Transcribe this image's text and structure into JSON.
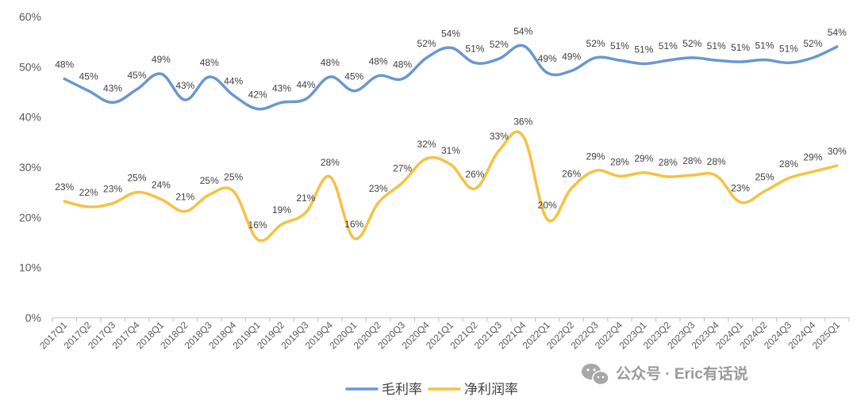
{
  "chart_data": {
    "type": "line",
    "categories": [
      "2017Q1",
      "2017Q2",
      "2017Q3",
      "2017Q4",
      "2018Q1",
      "2018Q2",
      "2018Q3",
      "2018Q4",
      "2019Q1",
      "2019Q2",
      "2019Q3",
      "2019Q4",
      "2020Q1",
      "2020Q2",
      "2020Q3",
      "2020Q4",
      "2021Q1",
      "2021Q2",
      "2021Q3",
      "2021Q4",
      "2022Q1",
      "2022Q2",
      "2022Q3",
      "2022Q4",
      "2023Q1",
      "2023Q2",
      "2023Q3",
      "2023Q4",
      "2024Q1",
      "2024Q2",
      "2024Q3",
      "2024Q4",
      "2025Q1"
    ],
    "series": [
      {
        "name": "毛利率",
        "color": "#6a97d1",
        "values": [
          47.6,
          45.2,
          42.9,
          45.5,
          48.6,
          43.4,
          48.0,
          44.3,
          41.6,
          42.9,
          43.6,
          48.0,
          45.2,
          48.2,
          47.6,
          51.8,
          53.8,
          50.8,
          51.6,
          54.2,
          48.8,
          49.2,
          51.8,
          51.3,
          50.6,
          51.3,
          51.8,
          51.3,
          51.0,
          51.4,
          50.8,
          51.8,
          54.0
        ],
        "labels": [
          "48%",
          "45%",
          "43%",
          "45%",
          "49%",
          "43%",
          "48%",
          "44%",
          "42%",
          "43%",
          "44%",
          "48%",
          "45%",
          "48%",
          "48%",
          "52%",
          "54%",
          "51%",
          "52%",
          "54%",
          "49%",
          "49%",
          "52%",
          "51%",
          "51%",
          "51%",
          "52%",
          "51%",
          "51%",
          "51%",
          "51%",
          "52%",
          "54%"
        ]
      },
      {
        "name": "净利润率",
        "color": "#f5c242",
        "values": [
          23.2,
          22.1,
          22.8,
          25.0,
          23.6,
          21.2,
          24.5,
          25.2,
          15.6,
          18.6,
          21.0,
          28.1,
          15.8,
          22.9,
          26.9,
          31.7,
          30.5,
          25.7,
          33.3,
          36.2,
          19.6,
          25.8,
          29.3,
          28.2,
          28.9,
          28.1,
          28.4,
          28.3,
          23.0,
          25.2,
          27.8,
          29.1,
          30.3
        ],
        "labels": [
          "23%",
          "22%",
          "23%",
          "25%",
          "24%",
          "21%",
          "25%",
          "25%",
          "16%",
          "19%",
          "21%",
          "28%",
          "16%",
          "23%",
          "27%",
          "32%",
          "31%",
          "26%",
          "33%",
          "36%",
          "20%",
          "26%",
          "29%",
          "28%",
          "29%",
          "28%",
          "28%",
          "28%",
          "23%",
          "25%",
          "28%",
          "29%",
          "30%"
        ]
      }
    ],
    "y_ticks": [
      "0%",
      "10%",
      "20%",
      "30%",
      "40%",
      "50%",
      "60%"
    ],
    "ylim": [
      0,
      60
    ],
    "grid": false,
    "legend_position": "bottom-center"
  },
  "watermark": {
    "text": "公众号 · Eric有话说",
    "icon": "wechat-icon"
  }
}
